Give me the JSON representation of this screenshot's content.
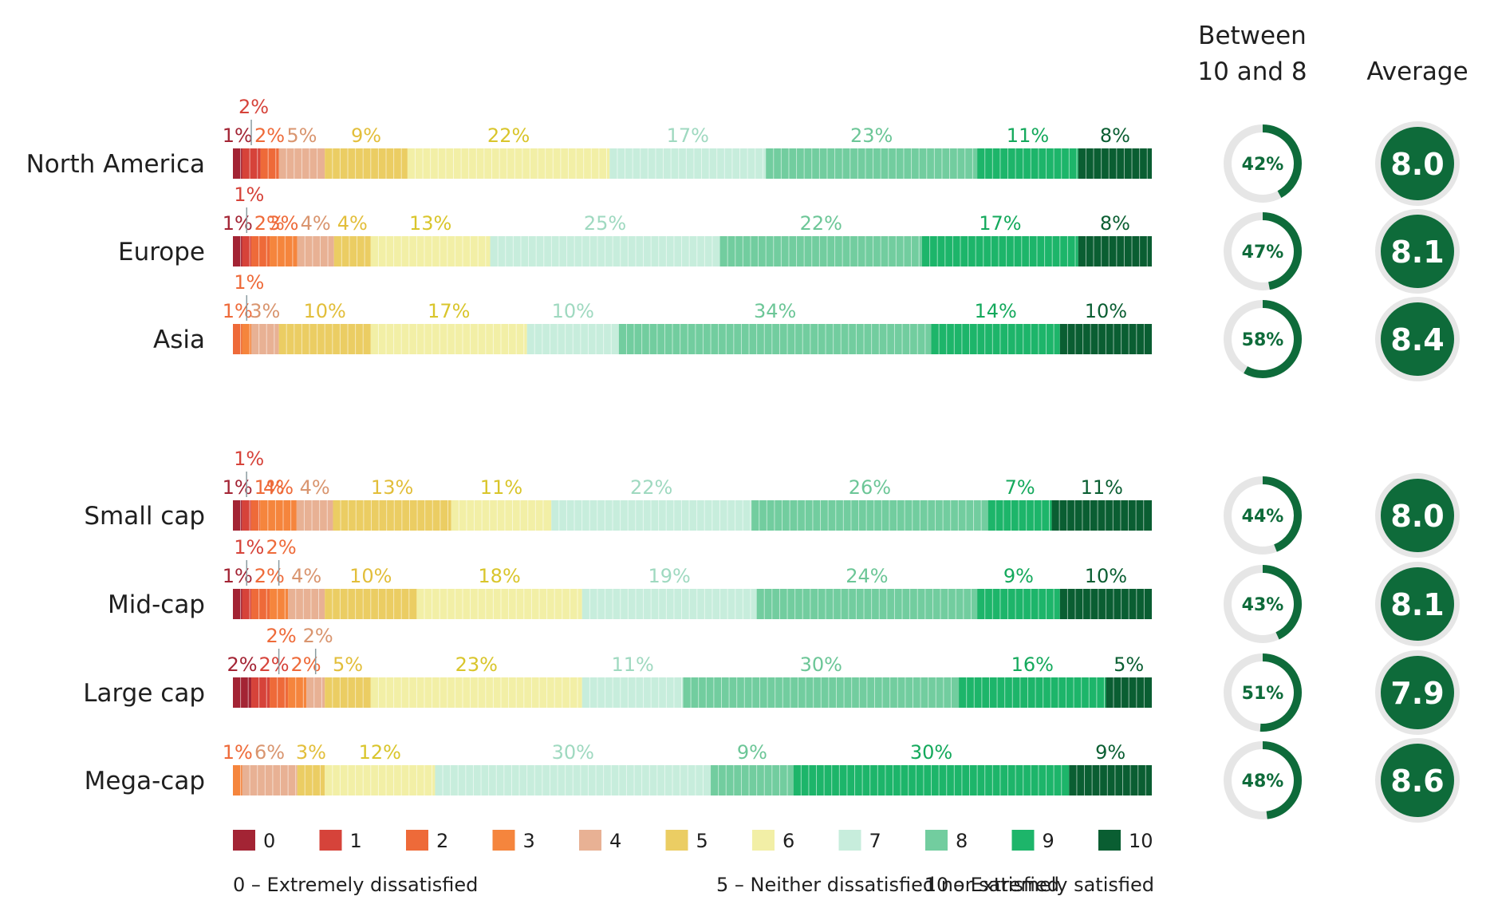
{
  "headers": {
    "between_line1": "Between",
    "between_line2": "10 and 8",
    "average": "Average"
  },
  "colors": {
    "0": "#a32434",
    "1": "#d6433a",
    "2": "#ee6a39",
    "3": "#f5853d",
    "4": "#e8b194",
    "5": "#ebcd63",
    "6": "#f2efa6",
    "7": "#c7eddc",
    "8": "#72cd9f",
    "9": "#1db56a",
    "10": "#0a5e32",
    "donut_track": "#e6e6e6",
    "donut_fill": "#0e6b3a",
    "avg_ring": "#e6e6e6",
    "avg_fill": "#0e6b3a"
  },
  "chart_data": {
    "type": "bar",
    "stacked": true,
    "orientation": "horizontal",
    "series_names": [
      "0",
      "1",
      "2",
      "3",
      "4",
      "5",
      "6",
      "7",
      "8",
      "9",
      "10"
    ],
    "groups": [
      {
        "rows": [
          {
            "label": "North America",
            "values": [
              1,
              2,
              2,
              0,
              5,
              9,
              22,
              17,
              23,
              11,
              8
            ],
            "between_10_and_8": "42%",
            "average": "8.0"
          },
          {
            "label": "Europe",
            "values": [
              1,
              1,
              2,
              3,
              4,
              4,
              13,
              25,
              22,
              17,
              8
            ],
            "between_10_and_8": "47%",
            "average": "8.1"
          },
          {
            "label": "Asia",
            "values": [
              0,
              0,
              1,
              1,
              3,
              10,
              17,
              10,
              34,
              14,
              10
            ],
            "between_10_and_8": "58%",
            "average": "8.4"
          }
        ]
      },
      {
        "rows": [
          {
            "label": "Small cap",
            "values": [
              1,
              1,
              1,
              4,
              4,
              13,
              11,
              22,
              26,
              7,
              11
            ],
            "between_10_and_8": "44%",
            "average": "8.0"
          },
          {
            "label": "Mid-cap",
            "values": [
              1,
              1,
              2,
              2,
              4,
              10,
              18,
              19,
              24,
              9,
              10
            ],
            "between_10_and_8": "43%",
            "average": "8.1"
          },
          {
            "label": "Large cap",
            "values": [
              2,
              2,
              2,
              2,
              2,
              5,
              23,
              11,
              30,
              16,
              5
            ],
            "between_10_and_8": "51%",
            "average": "7.9"
          },
          {
            "label": "Mega-cap",
            "values": [
              0,
              0,
              0,
              1,
              6,
              3,
              12,
              30,
              9,
              30,
              9
            ],
            "between_10_and_8": "48%",
            "average": "8.6"
          }
        ]
      }
    ],
    "legend": [
      {
        "key": "0",
        "label": "0"
      },
      {
        "key": "1",
        "label": "1"
      },
      {
        "key": "2",
        "label": "2"
      },
      {
        "key": "3",
        "label": "3"
      },
      {
        "key": "4",
        "label": "4"
      },
      {
        "key": "5",
        "label": "5"
      },
      {
        "key": "6",
        "label": "6"
      },
      {
        "key": "7",
        "label": "7"
      },
      {
        "key": "8",
        "label": "8"
      },
      {
        "key": "9",
        "label": "9"
      },
      {
        "key": "10",
        "label": "10"
      }
    ],
    "scale_notes": [
      "0 – Extremely dissatisfied",
      "5 – Neither dissatisfied nor satisfied",
      "10 – Extremely satisfied"
    ]
  }
}
